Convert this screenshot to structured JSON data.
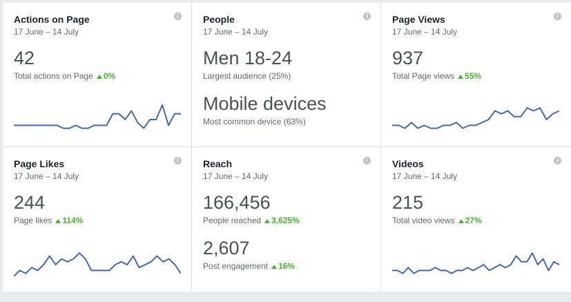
{
  "cards": [
    {
      "title": "Actions on Page",
      "range": "17 June – 14 July",
      "info": "i",
      "value": "42",
      "label": "Total actions on Page",
      "change": "0%",
      "spark": [
        3,
        3,
        3,
        3,
        3,
        3,
        3,
        3,
        2,
        2,
        3,
        2,
        2,
        3,
        3,
        3,
        7,
        7,
        5,
        8,
        4,
        2,
        5,
        5,
        10,
        3,
        7,
        7
      ]
    },
    {
      "title": "People",
      "range": "17 June – 14 July",
      "info": "i",
      "value": "Men 18-24",
      "label": "Largest audience (25%)",
      "value2": "Mobile devices",
      "label2": "Most common device (63%)"
    },
    {
      "title": "Page Views",
      "range": "17 June – 14 July",
      "info": "i",
      "value": "937",
      "label": "Total Page views",
      "change": "55%",
      "spark": [
        3,
        3,
        2,
        4,
        2,
        3,
        2,
        2,
        3,
        3,
        4,
        2,
        3,
        3,
        4,
        5,
        8,
        7,
        8,
        6,
        6,
        9,
        8,
        9,
        5,
        7,
        8
      ]
    },
    {
      "title": "Page Likes",
      "range": "17 June – 14 July",
      "info": "i",
      "value": "244",
      "label": "Page likes",
      "change": "114%",
      "spark": [
        1,
        3,
        2,
        4,
        3,
        5,
        8,
        5,
        7,
        6,
        7,
        9,
        7,
        3,
        3,
        3,
        3,
        5,
        6,
        5,
        8,
        4,
        5,
        6,
        8,
        6,
        7,
        5,
        2
      ]
    },
    {
      "title": "Reach",
      "range": "17 June – 14 July",
      "info": "i",
      "value": "166,456",
      "label": "People reached",
      "change": "3,625%",
      "value2": "2,607",
      "label2": "Post engagement",
      "change2": "16%"
    },
    {
      "title": "Videos",
      "range": "17 June – 14 July",
      "info": "i",
      "value": "215",
      "label": "Total video views",
      "change": "27%",
      "spark": [
        3,
        3,
        2,
        4,
        2,
        3,
        3,
        3,
        4,
        3,
        3,
        2,
        3,
        3,
        4,
        3,
        4,
        5,
        3,
        4,
        5,
        4,
        5,
        8,
        6,
        6,
        9,
        5,
        7,
        3,
        6,
        5
      ]
    }
  ]
}
